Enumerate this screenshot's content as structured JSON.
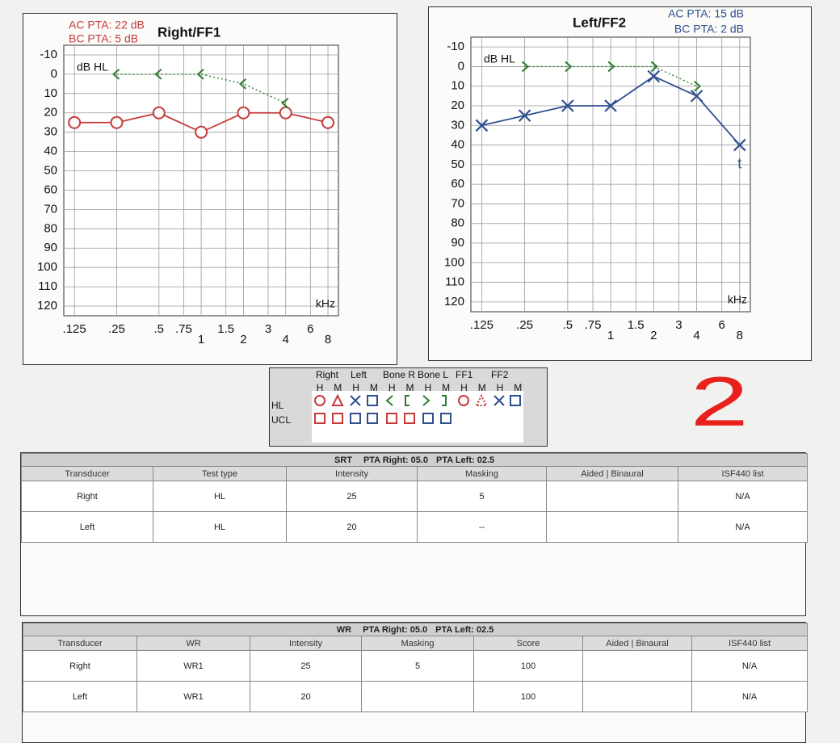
{
  "chart_data": [
    {
      "type": "line",
      "title": "Right/FF1",
      "pta_labels": [
        "AC PTA: 22 dB",
        "BC PTA: 5 dB"
      ],
      "pta_color": "#c43b3b",
      "y_label": "dB HL",
      "x_label": "kHz",
      "xscale": "log",
      "xlim": [
        0.105,
        9.5
      ],
      "xticks": [
        {
          "value": 0.125,
          "label": ".125"
        },
        {
          "value": 0.25,
          "label": ".25"
        },
        {
          "value": 0.5,
          "label": ".5"
        },
        {
          "value": 0.75,
          "label": ".75"
        },
        1,
        {
          "value": 1.5,
          "label": "1.5"
        },
        2,
        3,
        4,
        6,
        8
      ],
      "ylim": [
        -15,
        125
      ],
      "y_inverted": true,
      "yticks": [
        -10,
        0,
        10,
        20,
        30,
        40,
        50,
        60,
        70,
        80,
        90,
        100,
        110,
        120
      ],
      "grid": true,
      "series": [
        {
          "color": "#c43b3b",
          "marker": "circle",
          "line": "solid",
          "x": [
            0.125,
            0.25,
            0.5,
            1,
            2,
            4,
            8
          ],
          "values": [
            25,
            25,
            20,
            30,
            20,
            20,
            25
          ]
        },
        {
          "color": "#2e7d32",
          "marker": "chevron-left",
          "line": "dotted",
          "x": [
            0.25,
            0.5,
            1,
            2,
            4
          ],
          "values": [
            0,
            0,
            0,
            5,
            15
          ]
        }
      ]
    },
    {
      "type": "line",
      "title": "Left/FF2",
      "pta_labels": [
        "AC PTA: 15 dB",
        "BC PTA: 2 dB"
      ],
      "pta_color": "#2f4f8f",
      "y_label": "dB HL",
      "x_label": "kHz",
      "xscale": "log",
      "xlim": [
        0.105,
        9.5
      ],
      "annotation": "t",
      "xticks": [
        {
          "value": 0.125,
          "label": ".125"
        },
        {
          "value": 0.25,
          "label": ".25"
        },
        {
          "value": 0.5,
          "label": ".5"
        },
        {
          "value": 0.75,
          "label": ".75"
        },
        1,
        {
          "value": 1.5,
          "label": "1.5"
        },
        2,
        3,
        4,
        6,
        8
      ],
      "ylim": [
        -15,
        125
      ],
      "y_inverted": true,
      "yticks": [
        -10,
        0,
        10,
        20,
        30,
        40,
        50,
        60,
        70,
        80,
        90,
        100,
        110,
        120
      ],
      "grid": true,
      "series": [
        {
          "color": "#2f4f8f",
          "marker": "cross",
          "line": "solid",
          "x": [
            0.125,
            0.25,
            0.5,
            1,
            2,
            4,
            8
          ],
          "values": [
            30,
            25,
            20,
            20,
            5,
            15,
            40
          ]
        },
        {
          "color": "#2e7d32",
          "marker": "chevron-right",
          "line": "dotted",
          "x": [
            0.25,
            0.5,
            1,
            2,
            4
          ],
          "values": [
            0,
            0,
            0,
            0,
            10
          ]
        }
      ]
    }
  ],
  "legend_box": {
    "headers": [
      "Right",
      "Left",
      "Bone R",
      "Bone L",
      "FF1",
      "FF2"
    ],
    "columns": [
      "H",
      "M"
    ],
    "rows": [
      "HL",
      "UCL"
    ]
  },
  "annotation": "2",
  "srt_table": {
    "title": "SRT",
    "pta_right": "PTA Right: 05.0",
    "pta_left": "PTA Left: 02.5",
    "columns": [
      "Transducer",
      "Test type",
      "Intensity",
      "Masking",
      "Aided | Binaural",
      "ISF440 list"
    ],
    "rows": [
      [
        "Right",
        "HL",
        25,
        5,
        null,
        "N/A"
      ],
      [
        "Left",
        "HL",
        20,
        "--",
        null,
        "N/A"
      ]
    ]
  },
  "wr_table": {
    "title": "WR",
    "pta_right": "PTA Right: 05.0",
    "pta_left": "PTA Left: 02.5",
    "columns": [
      "Transducer",
      "WR",
      "Intensity",
      "Masking",
      "Score",
      "Aided | Binaural",
      "ISF440 list"
    ],
    "rows": [
      [
        "Right",
        "WR1",
        25,
        5,
        100,
        null,
        "N/A"
      ],
      [
        "Left",
        "WR1",
        20,
        null,
        100,
        null,
        "N/A"
      ]
    ]
  }
}
